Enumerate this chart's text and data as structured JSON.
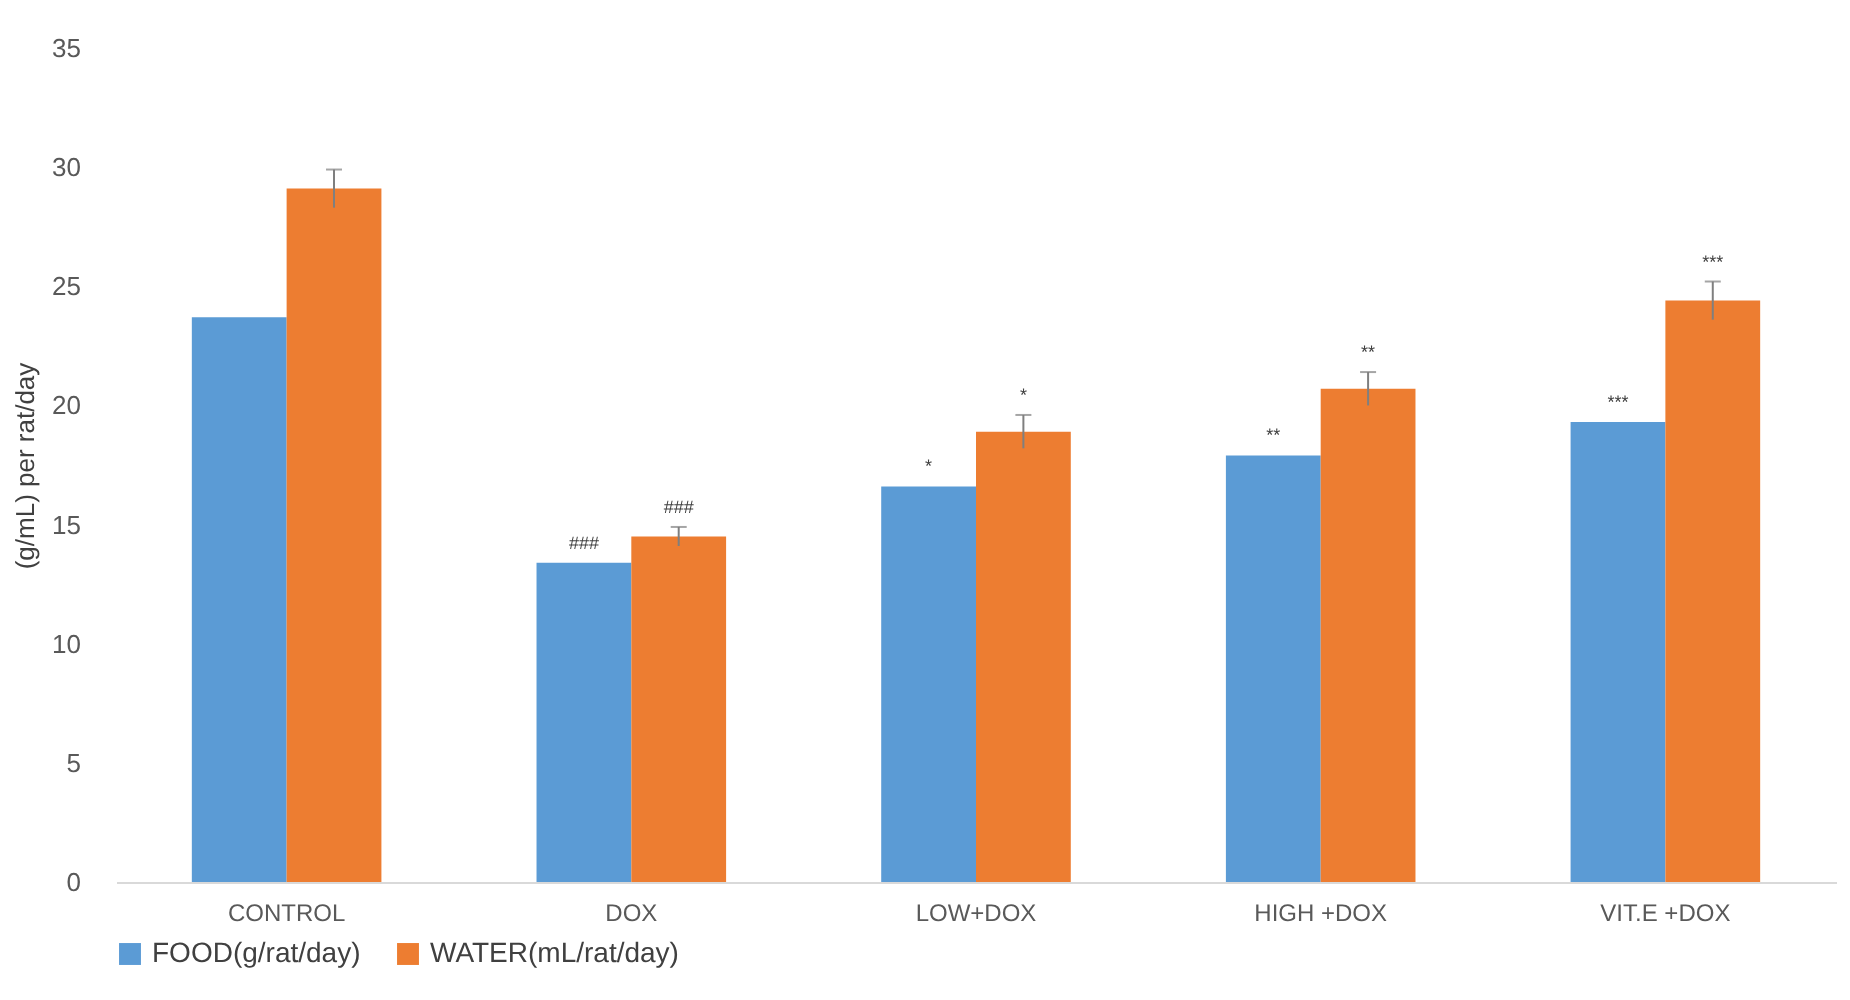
{
  "chart_data": {
    "type": "bar",
    "ylabel": "(g/mL) per rat/day",
    "categories": [
      "CONTROL",
      "DOX",
      "LOW+DOX",
      "HIGH +DOX",
      "VIT.E +DOX"
    ],
    "series": [
      {
        "name": "FOOD(g/rat/day)",
        "color": "#5b9bd5",
        "values": [
          23.7,
          13.4,
          16.6,
          17.9,
          19.3
        ]
      },
      {
        "name": "WATER(mL/rat/day)",
        "color": "#ed7d31",
        "values": [
          29.1,
          14.5,
          18.9,
          20.7,
          24.4
        ],
        "errors": [
          0.8,
          0.4,
          0.7,
          0.7,
          0.8
        ]
      }
    ],
    "ylim": [
      0,
      35
    ],
    "yticks": [
      0,
      5,
      10,
      15,
      20,
      25,
      30,
      35
    ],
    "grid": false,
    "legend": "bottom",
    "annotations": [
      {
        "text": "###",
        "x": "DOX",
        "y": 13.4
      },
      {
        "text": "###",
        "x": "DOX",
        "y": 14.5
      },
      {
        "text": "*",
        "x": "LOW+DOX",
        "y": 16.6
      },
      {
        "text": "*",
        "x": "LOW+DOX",
        "y": 18.9
      },
      {
        "text": "**",
        "x": "HIGH +DOX",
        "y": 17.9
      },
      {
        "text": "**",
        "x": "HIGH +DOX",
        "y": 20.7
      },
      {
        "text": "***",
        "x": "VIT.E +DOX",
        "y": 19.3
      },
      {
        "text": "***",
        "x": "VIT.E +DOX",
        "y": 24.4
      }
    ]
  }
}
